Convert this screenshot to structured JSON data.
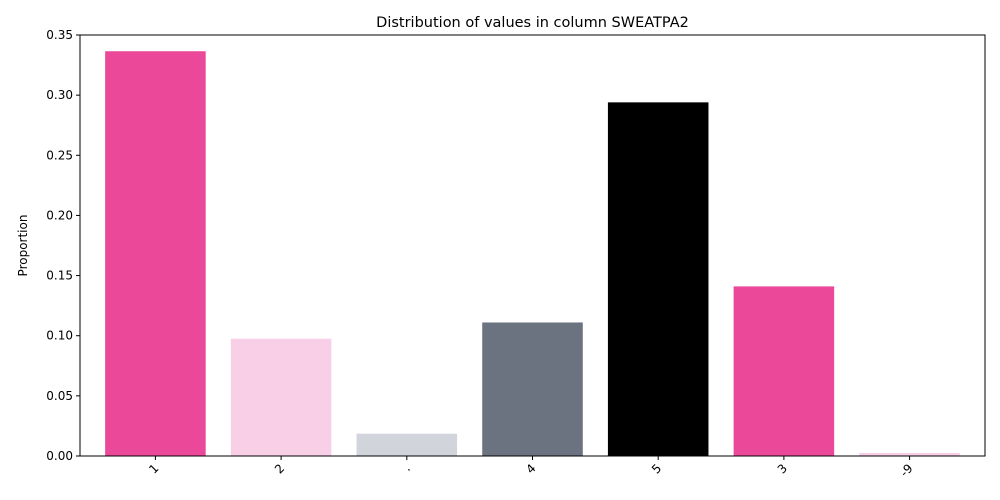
{
  "chart_data": {
    "type": "bar",
    "title": "Distribution of values in column SWEATPA2",
    "xlabel": "",
    "ylabel": "Proportion",
    "categories": [
      "1",
      "2",
      ".",
      "4",
      "5",
      "3",
      "-9"
    ],
    "values": [
      0.3365,
      0.0975,
      0.0185,
      0.111,
      0.294,
      0.141,
      0.0025
    ],
    "colors": [
      "#ec4899",
      "#f9cfe7",
      "#d1d5db",
      "#6b7280",
      "#000000",
      "#ec4899",
      "#f9cfe7"
    ],
    "ylim": [
      0,
      0.35
    ],
    "yticks": [
      "0.00",
      "0.05",
      "0.10",
      "0.15",
      "0.20",
      "0.25",
      "0.30",
      "0.35"
    ],
    "grid": false,
    "legend": "none"
  }
}
